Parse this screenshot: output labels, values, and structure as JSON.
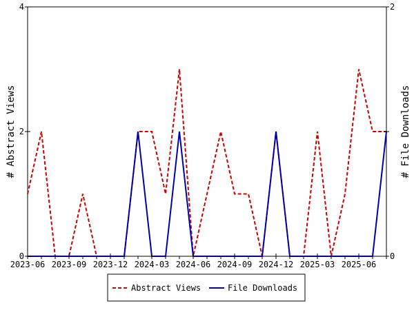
{
  "chart_data": {
    "type": "line",
    "x": [
      "2023-06",
      "2023-07",
      "2023-08",
      "2023-09",
      "2023-10",
      "2023-11",
      "2023-12",
      "2024-01",
      "2024-02",
      "2024-03",
      "2024-04",
      "2024-05",
      "2024-06",
      "2024-07",
      "2024-08",
      "2024-09",
      "2024-10",
      "2024-11",
      "2024-12",
      "2025-01",
      "2025-02",
      "2025-03",
      "2025-04",
      "2025-05",
      "2025-06",
      "2025-07",
      "2025-08"
    ],
    "x_tick_labels": [
      "2023-06",
      "2023-09",
      "2023-12",
      "2024-03",
      "2024-06",
      "2024-09",
      "2024-12",
      "2025-03",
      "2025-06"
    ],
    "series": [
      {
        "name": "Abstract Views",
        "axis": "left",
        "color": "#cc0000",
        "style": "dashed",
        "values": [
          1,
          2,
          0,
          0,
          1,
          0,
          0,
          0,
          2,
          2,
          1,
          3,
          0,
          1,
          2,
          1,
          1,
          0,
          2,
          0,
          0,
          2,
          0,
          1,
          3,
          2,
          2
        ]
      },
      {
        "name": "File Downloads",
        "axis": "right",
        "color": "#0000aa",
        "style": "solid",
        "values": [
          0,
          0,
          0,
          0,
          0,
          0,
          0,
          0,
          1,
          0,
          0,
          1,
          0,
          0,
          0,
          0,
          0,
          0,
          1,
          0,
          0,
          0,
          0,
          0,
          0,
          0,
          1
        ]
      }
    ],
    "ylabel": "# Abstract Views",
    "ylim": [
      0,
      4
    ],
    "y_ticks": [
      "0",
      "2",
      "4"
    ],
    "y2label": "# File Downloads",
    "y2lim": [
      0,
      2
    ],
    "y2_ticks": [
      "0",
      "1",
      "2"
    ],
    "grid": false,
    "legend_position": "bottom-center"
  }
}
